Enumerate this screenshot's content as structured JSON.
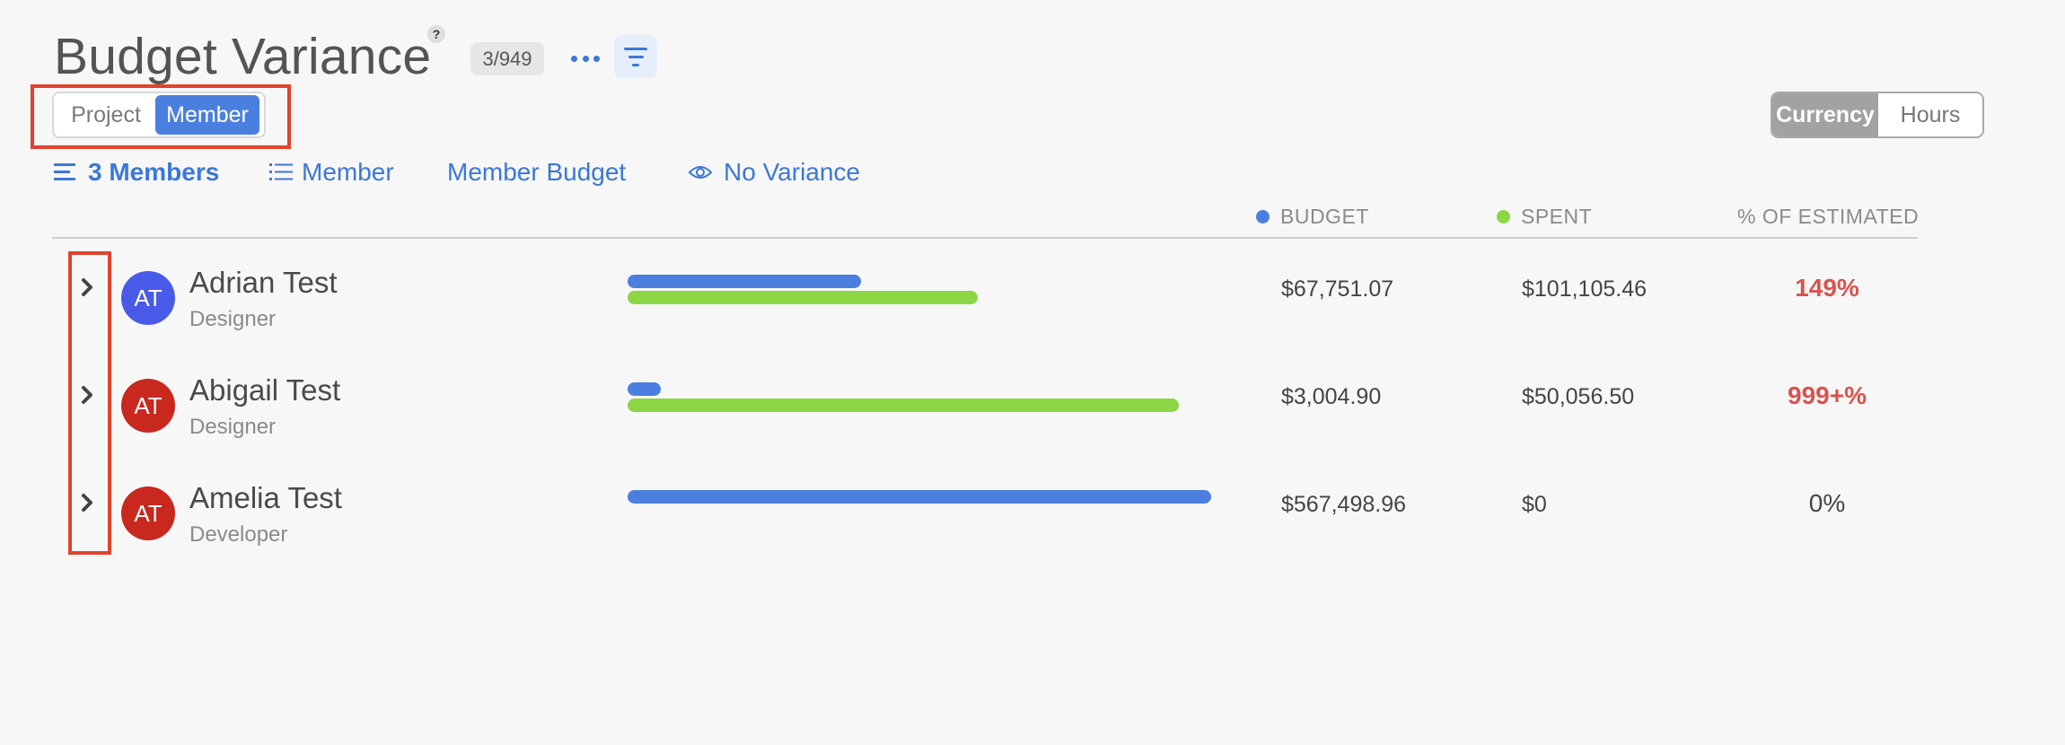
{
  "page": {
    "title": "Budget Variance",
    "help_icon": "?",
    "count_badge": "3/949"
  },
  "view_toggle": {
    "options": [
      "Project",
      "Member"
    ],
    "selected": "Member"
  },
  "unit_toggle": {
    "options": [
      "Currency",
      "Hours"
    ],
    "selected": "Currency"
  },
  "sub_nav": {
    "members_count": "3 Members",
    "group_by": "Member",
    "budget_type": "Member Budget",
    "variance_filter": "No Variance"
  },
  "columns": {
    "budget": "BUDGET",
    "spent": "SPENT",
    "pct_estimated": "% OF ESTIMATED"
  },
  "colors": {
    "accent": "#3b78d8",
    "budget_bar": "#4a7fe0",
    "spent_bar": "#8cd646",
    "over": "#d9534f",
    "highlight": "#e0432f"
  },
  "rows": [
    {
      "initials": "AT",
      "name": "Adrian Test",
      "role": "Designer",
      "budget": "$67,751.07",
      "spent": "$101,105.46",
      "pct": "149%",
      "over": true,
      "avatar_color": "#4a5ae8",
      "budget_fill": 0.4,
      "spent_fill": 0.6
    },
    {
      "initials": "AT",
      "name": "Abigail Test",
      "role": "Designer",
      "budget": "$3,004.90",
      "spent": "$50,056.50",
      "pct": "999+%",
      "over": true,
      "avatar_color": "#c8281e",
      "budget_fill": 0.057,
      "spent_fill": 0.944
    },
    {
      "initials": "AT",
      "name": "Amelia Test",
      "role": "Developer",
      "budget": "$567,498.96",
      "spent": "$0",
      "pct": "0%",
      "over": false,
      "avatar_color": "#c8281e",
      "budget_fill": 1.0,
      "spent_fill": 0
    }
  ]
}
